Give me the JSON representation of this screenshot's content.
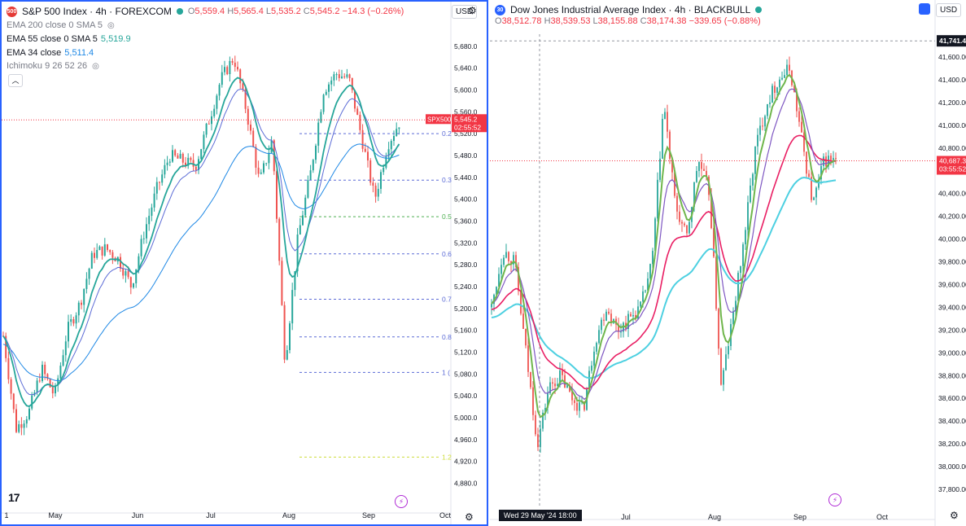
{
  "left": {
    "header": {
      "title": "S&P 500 Index · 4h · FOREXCOM",
      "o_label": "O",
      "o": "5,559.4",
      "h_label": "H",
      "h": "5,565.4",
      "l_label": "L",
      "l": "5,535.2",
      "c_label": "C",
      "c": "5,545.2",
      "chg": "−14.3 (−0.26%)"
    },
    "indicators": [
      {
        "name": "EMA 200 close 0 SMA 5",
        "value": ""
      },
      {
        "name": "EMA 55 close 0 SMA 5",
        "value": "5,519.9"
      },
      {
        "name": "EMA 34 close",
        "value": "5,511.4"
      },
      {
        "name": "Ichimoku 9 26 52 26",
        "value": ""
      }
    ],
    "currency": "USD",
    "price_tag": {
      "symbol": "SPX500",
      "price": "5,545.2",
      "countdown": "02:55:52"
    },
    "fib_labels": [
      "0.2",
      "0.3",
      "0.5",
      "0.6",
      "0.7",
      "0.8",
      "1 (",
      "1.2"
    ],
    "colors": {
      "up": "#26a69a",
      "down": "#ef5350",
      "ema34": "#26a69a",
      "ema55": "#5b6bd6",
      "ema200": "#1e88e5"
    }
  },
  "right": {
    "header": {
      "title": "Dow Jones Industrial Average Index · 4h · BLACKBULL",
      "o_label": "O",
      "o": "38,512.78",
      "h_label": "H",
      "h": "38,539.53",
      "l_label": "L",
      "l": "38,155.88",
      "c_label": "C",
      "c": "38,174.38",
      "chg": "−339.65 (−0.88%)"
    },
    "currency": "USD",
    "crosshair_price": "41,741.4",
    "price_tag": {
      "price": "40,687.3",
      "countdown": "03:55:52"
    },
    "time_cursor": "Wed 29 May '24   18:00",
    "colors": {
      "up": "#26a69a",
      "down": "#ef5350",
      "fast": "#6fb64c",
      "mid": "#7e57c2",
      "slow": "#e91e63",
      "ma": "#4dd0e1"
    }
  },
  "chart_data": [
    {
      "type": "candlestick",
      "title": "S&P 500 Index · 4h · FOREXCOM",
      "x_ticks": [
        "1",
        "May",
        "Jun",
        "Jul",
        "Aug",
        "Sep",
        "Oct"
      ],
      "y_ticks": [
        "5,680.0",
        "5,640.0",
        "5,600.0",
        "5,560.0",
        "5,520.0",
        "5,480.0",
        "5,440.0",
        "5,400.0",
        "5,360.0",
        "5,320.0",
        "5,280.0",
        "5,240.0",
        "5,200.0",
        "5,160.0",
        "5,120.0",
        "5,080.0",
        "5,040.0",
        "5,000.0",
        "4,960.0",
        "4,920.0",
        "4,880.0"
      ],
      "ylim": [
        4860,
        5720
      ],
      "series_close": [
        [
          "Apr 15",
          5150
        ],
        [
          "Apr 19",
          4980
        ],
        [
          "Apr 22",
          5010
        ],
        [
          "Apr 26",
          5090
        ],
        [
          "May 1",
          5040
        ],
        [
          "May 6",
          5160
        ],
        [
          "May 10",
          5210
        ],
        [
          "May 15",
          5300
        ],
        [
          "May 22",
          5310
        ],
        [
          "May 24",
          5290
        ],
        [
          "May 31",
          5240
        ],
        [
          "Jun 5",
          5340
        ],
        [
          "Jun 12",
          5420
        ],
        [
          "Jun 18",
          5480
        ],
        [
          "Jun 25",
          5470
        ],
        [
          "Jul 1",
          5460
        ],
        [
          "Jul 5",
          5540
        ],
        [
          "Jul 11",
          5620
        ],
        [
          "Jul 16",
          5660
        ],
        [
          "Jul 19",
          5560
        ],
        [
          "Jul 24",
          5430
        ],
        [
          "Jul 31",
          5510
        ],
        [
          "Aug 5",
          5100
        ],
        [
          "Aug 9",
          5330
        ],
        [
          "Aug 14",
          5450
        ],
        [
          "Aug 19",
          5600
        ],
        [
          "Aug 23",
          5630
        ],
        [
          "Aug 28",
          5620
        ],
        [
          "Sep 3",
          5510
        ],
        [
          "Sep 6",
          5400
        ],
        [
          "Sep 10",
          5500
        ],
        [
          "Sep 12",
          5545.2
        ]
      ],
      "fibonacci_levels": [
        {
          "label": "0.2",
          "price": 5520
        },
        {
          "label": "0.3",
          "price": 5435
        },
        {
          "label": "0.5",
          "price": 5368
        },
        {
          "label": "0.6",
          "price": 5300
        },
        {
          "label": "0.7",
          "price": 5217
        },
        {
          "label": "0.8",
          "price": 5148
        },
        {
          "label": "1 (",
          "price": 5083
        },
        {
          "label": "1.2",
          "price": 4928
        }
      ],
      "moving_averages": [
        {
          "name": "EMA 55 close 0 SMA 5",
          "last": 5519.9
        },
        {
          "name": "EMA 34 close",
          "last": 5511.4
        }
      ],
      "last_price": 5545.2
    },
    {
      "type": "candlestick",
      "title": "Dow Jones Industrial Average Index · 4h · BLACKBULL",
      "x_ticks": [
        "Jul",
        "Aug",
        "Sep",
        "Oct"
      ],
      "y_ticks": [
        "41,600.00",
        "41,400.00",
        "41,200.00",
        "41,000.00",
        "40,800.00",
        "40,600.00",
        "40,400.00",
        "40,200.00",
        "40,000.00",
        "39,800.00",
        "39,600.00",
        "39,400.00",
        "39,200.00",
        "39,000.00",
        "38,800.00",
        "38,600.00",
        "38,400.00",
        "38,200.00",
        "38,000.00",
        "37,800.00"
      ],
      "ylim": [
        37700,
        41800
      ],
      "series_close": [
        [
          "May 6",
          39400
        ],
        [
          "May 15",
          39900
        ],
        [
          "May 20",
          39800
        ],
        [
          "May 24",
          39000
        ],
        [
          "May 29",
          38200
        ],
        [
          "Jun 3",
          38700
        ],
        [
          "Jun 7",
          38800
        ],
        [
          "Jun 12",
          38600
        ],
        [
          "Jun 14",
          38500
        ],
        [
          "Jun 20",
          39100
        ],
        [
          "Jun 24",
          39400
        ],
        [
          "Jun 28",
          39200
        ],
        [
          "Jul 3",
          39300
        ],
        [
          "Jul 8",
          39400
        ],
        [
          "Jul 12",
          39800
        ],
        [
          "Jul 17",
          41200
        ],
        [
          "Jul 19",
          40300
        ],
        [
          "Jul 24",
          40000
        ],
        [
          "Jul 29",
          40700
        ],
        [
          "Aug 1",
          40400
        ],
        [
          "Aug 5",
          38700
        ],
        [
          "Aug 9",
          39300
        ],
        [
          "Aug 14",
          40000
        ],
        [
          "Aug 19",
          40800
        ],
        [
          "Aug 23",
          41200
        ],
        [
          "Aug 28",
          41400
        ],
        [
          "Aug 30",
          41500
        ],
        [
          "Sep 3",
          40900
        ],
        [
          "Sep 6",
          40300
        ],
        [
          "Sep 10",
          40700
        ],
        [
          "Sep 12",
          40687.3
        ]
      ],
      "last_price": 40687.3
    }
  ]
}
